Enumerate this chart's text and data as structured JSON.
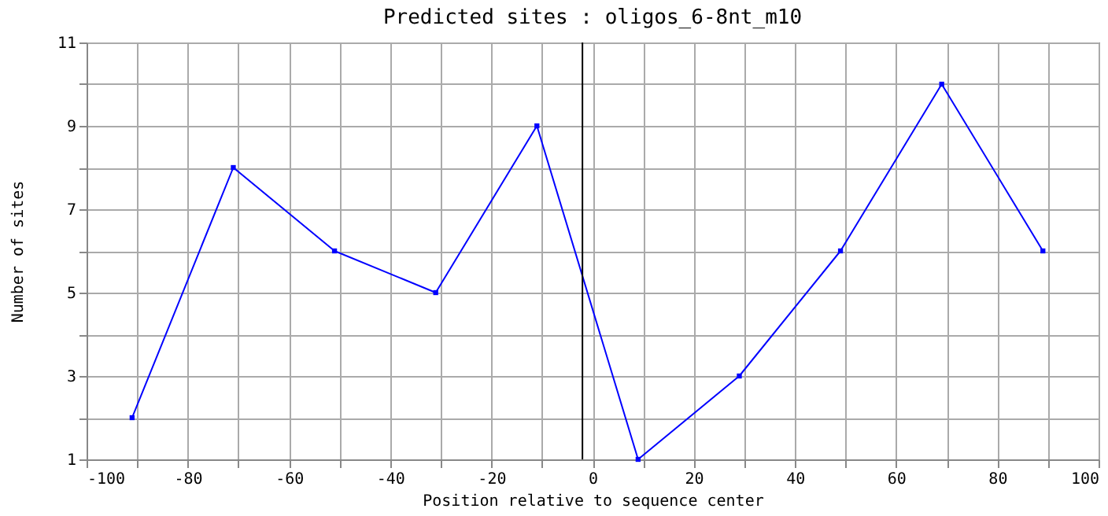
{
  "chart_data": {
    "type": "line",
    "title": "Predicted sites : oligos_6-8nt_m10",
    "xlabel": "Position relative to sequence center",
    "ylabel": "Number of sites",
    "x": [
      -91,
      -71,
      -51,
      -31,
      -11,
      9,
      29,
      49,
      69,
      89
    ],
    "series": [
      {
        "color": "#0000ff",
        "values": [
          2,
          8,
          6,
          5,
          9,
          1,
          3,
          6,
          10,
          6
        ]
      }
    ],
    "xlim": [
      -100,
      100
    ],
    "xticks": [
      -100,
      {
        "value": -90,
        "label": null
      },
      -80,
      {
        "value": -70,
        "label": null
      },
      -60,
      {
        "value": -50,
        "label": null
      },
      -40,
      {
        "value": -30,
        "label": null
      },
      -20,
      {
        "value": -10,
        "label": null
      },
      0,
      {
        "value": 10,
        "label": null
      },
      20,
      {
        "value": 30,
        "label": null
      },
      40,
      {
        "value": 50,
        "label": null
      },
      60,
      {
        "value": 70,
        "label": null
      },
      80,
      {
        "value": 90,
        "label": null
      },
      100
    ],
    "ylim": [
      1,
      11
    ],
    "yticks": [
      1,
      {
        "value": 2,
        "label": null
      },
      3,
      {
        "value": 4,
        "label": null
      },
      5,
      {
        "value": 6,
        "label": null
      },
      7,
      {
        "value": 8,
        "label": null
      },
      9,
      {
        "value": 10,
        "label": null
      },
      11
    ],
    "ref_lines": [
      {
        "axis": "x",
        "value": -2,
        "color": "#000000"
      }
    ],
    "grid": true,
    "marker": "square",
    "line_style": "solid"
  }
}
